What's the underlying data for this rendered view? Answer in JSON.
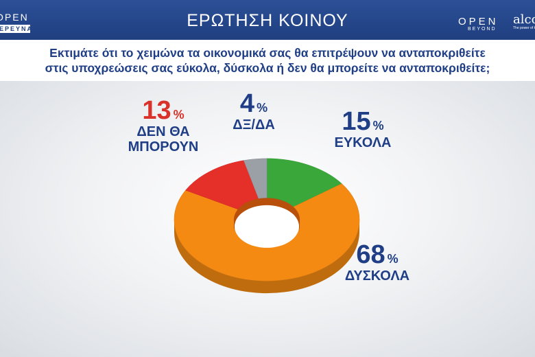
{
  "header": {
    "title": "ΕΡΩΤΗΣΗ ΚΟΙΝΟΥ",
    "logo_left_top": "OPEN",
    "logo_left_bottom": "ΕΡΕΥΝΑ",
    "logo_right_top": "OPEN",
    "logo_right_bottom": "BEYOND",
    "logo_alco": "alco",
    "logo_alco_tag": "The power of knowing"
  },
  "question": {
    "line1": "Εκτιμάτε ότι το χειμώνα τα οικονομικά σας θα επιτρέψουν  να ανταποκριθείτε",
    "line2": "στις υποχρεώσεις σας εύκολα, δύσκολα ή δεν θα μπορείτε να ανταποκριθείτε;"
  },
  "chart_data": {
    "type": "pie",
    "donut": true,
    "labels": [
      "ΕΥΚΟΛΑ",
      "ΔΥΣΚΟΛΑ",
      "ΔΕΝ ΘΑ ΜΠΟΡΟΥΝ",
      "ΔΞ/ΔΑ"
    ],
    "values": [
      15,
      68,
      13,
      4
    ],
    "value_texts": [
      "15",
      "68",
      "13",
      "4"
    ],
    "unit": "%",
    "colors": [
      "#3aa73a",
      "#f58a13",
      "#e5302a",
      "#9aa0a6"
    ],
    "label_lines": [
      [
        "ΕΥΚΟΛΑ"
      ],
      [
        "ΔΥΣΚΟΛΑ"
      ],
      [
        "ΔΕΝ ΘΑ",
        "ΜΠΟΡΟΥΝ"
      ],
      [
        "ΔΞ/ΔΑ"
      ]
    ]
  }
}
